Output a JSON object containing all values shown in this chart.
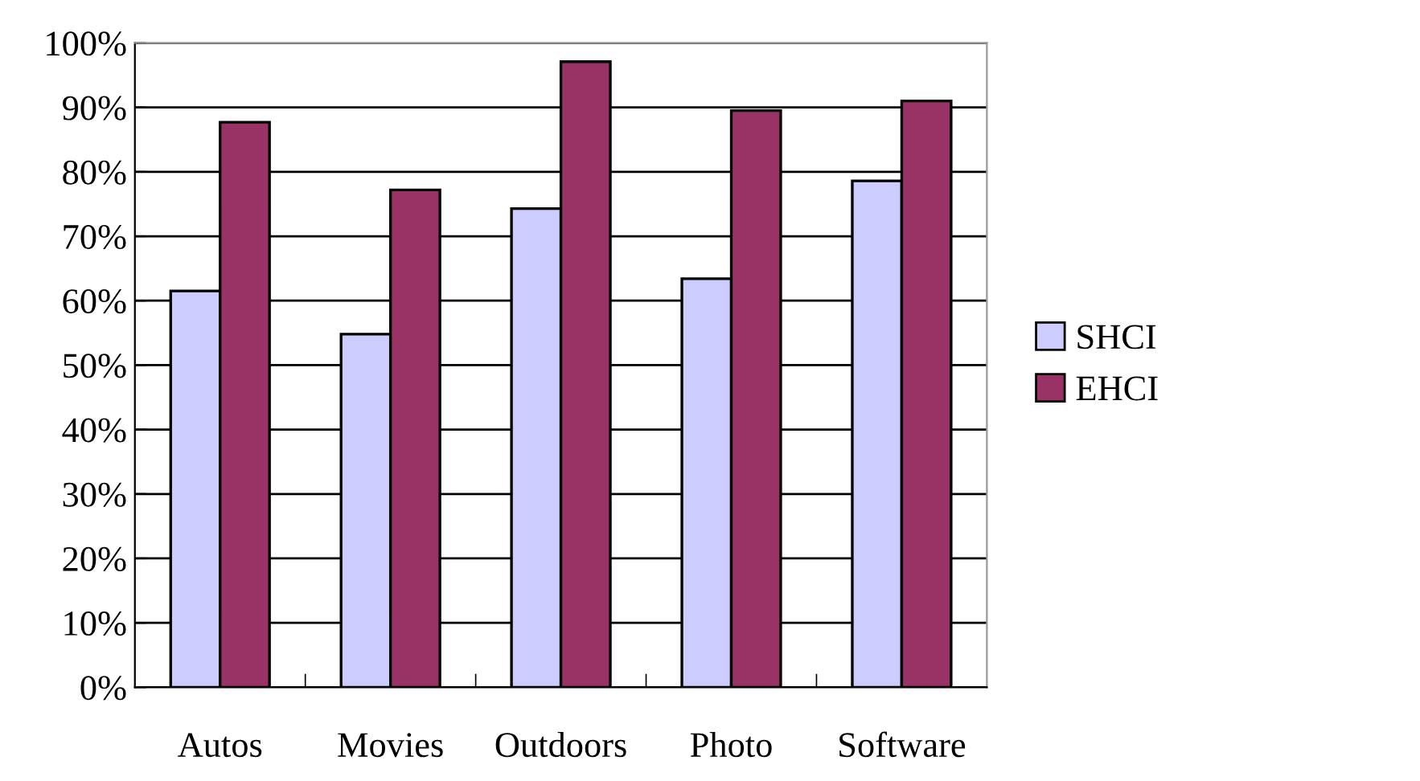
{
  "chart_data": {
    "type": "bar",
    "categories": [
      "Autos",
      "Movies",
      "Outdoors",
      "Photo",
      "Software"
    ],
    "series": [
      {
        "name": "SHCI",
        "color": "#ccccff",
        "values": [
          61.5,
          54.8,
          74.3,
          63.4,
          78.6
        ]
      },
      {
        "name": "EHCI",
        "color": "#993366",
        "values": [
          87.7,
          77.2,
          97.1,
          89.5,
          91.0
        ]
      }
    ],
    "ylim": [
      0,
      100
    ],
    "yticks": [
      {
        "value": 0,
        "label": "0%"
      },
      {
        "value": 10,
        "label": "10%"
      },
      {
        "value": 20,
        "label": "20%"
      },
      {
        "value": 30,
        "label": "30%"
      },
      {
        "value": 40,
        "label": "40%"
      },
      {
        "value": 50,
        "label": "50%"
      },
      {
        "value": 60,
        "label": "60%"
      },
      {
        "value": 70,
        "label": "70%"
      },
      {
        "value": 80,
        "label": "80%"
      },
      {
        "value": 90,
        "label": "90%"
      },
      {
        "value": 100,
        "label": "100%"
      }
    ],
    "grid": "y",
    "legend": "right"
  }
}
